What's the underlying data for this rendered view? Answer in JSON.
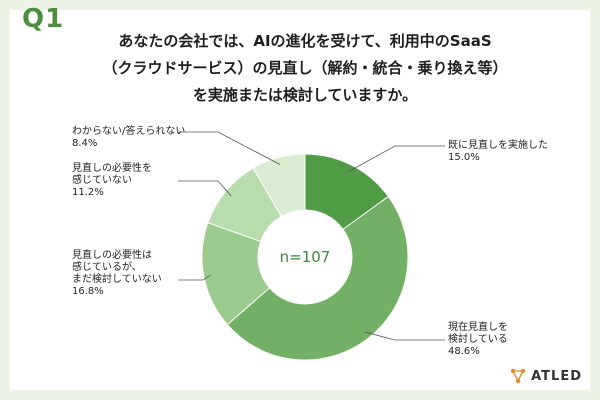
{
  "question": {
    "number": "Q1",
    "lines": [
      "あなたの会社では、AIの進化を受けて、利用中のSaaS",
      "（クラウドサービス）の見直し（解約・統合・乗り換え等）",
      "を実施または検討していますか。"
    ]
  },
  "brand": {
    "name": "ATLED"
  },
  "chart_data": {
    "type": "pie",
    "donut": true,
    "center_label": "n=107",
    "unit": "%",
    "slices": [
      {
        "label_lines": [
          "既に見直しを実施した"
        ],
        "value": 15.0,
        "value_text": "15.0%",
        "color": "#4f9c44"
      },
      {
        "label_lines": [
          "現在見直しを",
          "検討している"
        ],
        "value": 48.6,
        "value_text": "48.6%",
        "color": "#72b065"
      },
      {
        "label_lines": [
          "見直しの必要性は",
          "感じているが、",
          "まだ検討していない"
        ],
        "value": 16.8,
        "value_text": "16.8%",
        "color": "#9bcb8e"
      },
      {
        "label_lines": [
          "見直しの必要性を",
          "感じていない"
        ],
        "value": 11.2,
        "value_text": "11.2%",
        "color": "#b8dcae"
      },
      {
        "label_lines": [
          "わからない/答えられない"
        ],
        "value": 8.4,
        "value_text": "8.4%",
        "color": "#d8ecd2"
      }
    ]
  }
}
